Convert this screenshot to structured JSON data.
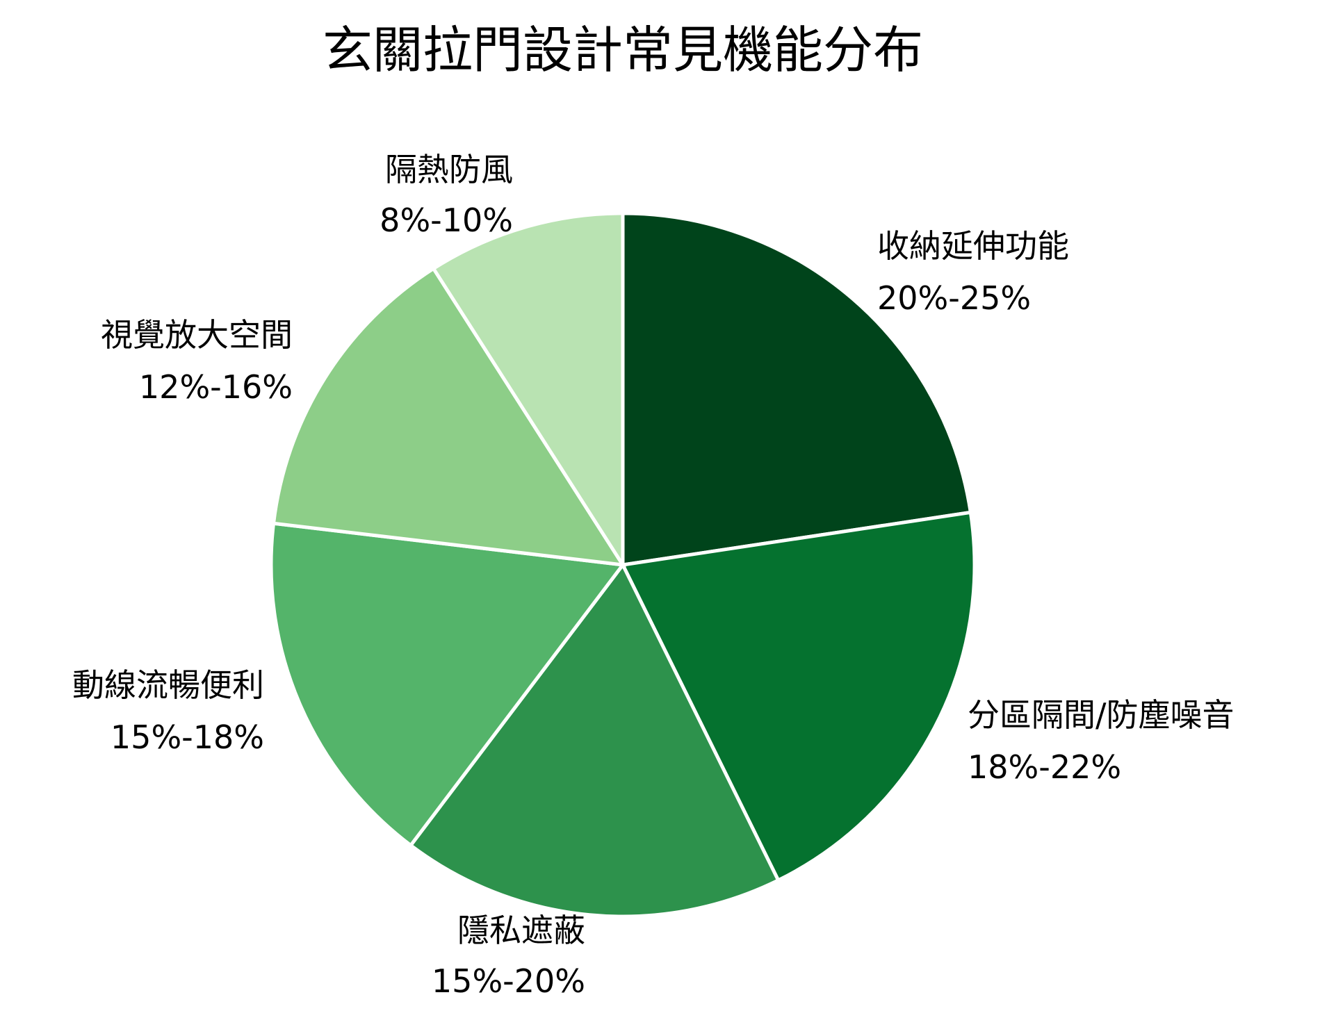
{
  "chart_data": {
    "type": "pie",
    "title": "玄關拉門設計常見機能分布",
    "start_angle_deg": 0,
    "direction": "clockwise",
    "slices": [
      {
        "label": "收納延伸功能",
        "range": "20%-25%",
        "value": 22.5,
        "color": "#00441b"
      },
      {
        "label": "分區隔間/防塵噪音",
        "range": "18%-22%",
        "value": 20,
        "color": "#05722f"
      },
      {
        "label": "隱私遮蔽",
        "range": "15%-20%",
        "value": 17.5,
        "color": "#2d924c"
      },
      {
        "label": "動線流暢便利",
        "range": "15%-18%",
        "value": 16.5,
        "color": "#54b46a"
      },
      {
        "label": "視覺放大空間",
        "range": "12%-16%",
        "value": 14,
        "color": "#8dce88"
      },
      {
        "label": "隔熱防風",
        "range": "8%-10%",
        "value": 9,
        "color": "#b9e3b2"
      }
    ]
  }
}
